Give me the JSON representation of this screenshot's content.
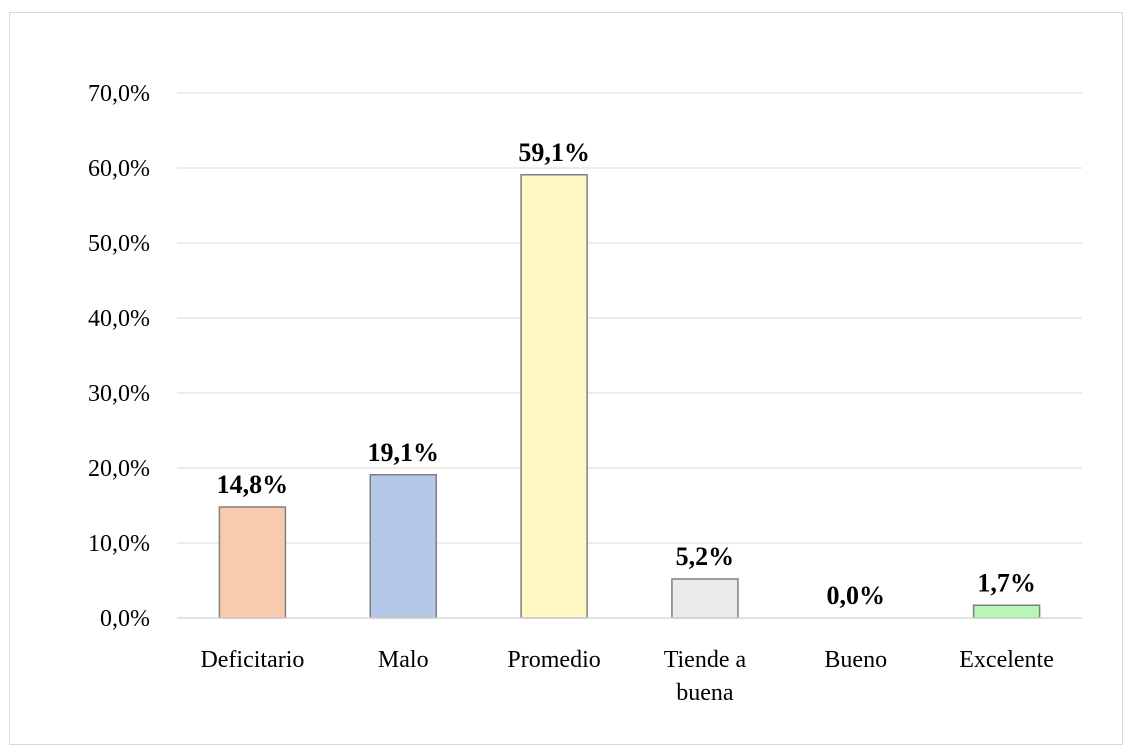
{
  "chart_data": {
    "type": "bar",
    "title": "",
    "xlabel": "",
    "ylabel": "",
    "categories": [
      [
        "Deficitario"
      ],
      [
        "Malo"
      ],
      [
        "Promedio"
      ],
      [
        "Tiende a",
        "buena"
      ],
      [
        "Bueno"
      ],
      [
        "Excelente"
      ]
    ],
    "values": [
      14.8,
      19.1,
      59.1,
      5.2,
      0.0,
      1.7
    ],
    "data_labels": [
      "14,8%",
      "19,1%",
      "59,1%",
      "5,2%",
      "0,0%",
      "1,7%"
    ],
    "bar_colors": [
      "#f8cbad",
      "#b4c7e7",
      "#fff9c4",
      "#ebebeb",
      "#ffffff",
      "#b6f7b6"
    ],
    "bar_border_color": "#7f7f7f",
    "gridline_color": "#d9d9d9",
    "ylim": [
      0,
      70
    ],
    "yticks": [
      0,
      10,
      20,
      30,
      40,
      50,
      60,
      70
    ],
    "ytick_labels": [
      "0,0%",
      "10,0%",
      "20,0%",
      "30,0%",
      "40,0%",
      "50,0%",
      "60,0%",
      "70,0%"
    ],
    "grid": true,
    "legend": "none"
  }
}
